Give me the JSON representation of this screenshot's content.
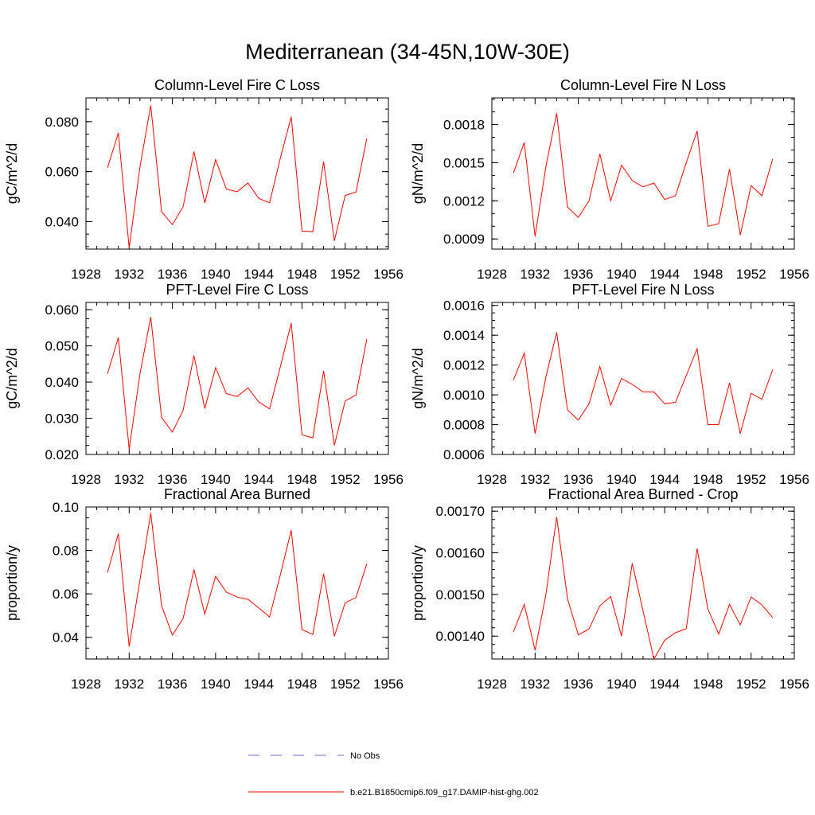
{
  "figure": {
    "title": "Mediterranean (34-45N,10W-30E)"
  },
  "legend": {
    "items": [
      {
        "label": "No Obs",
        "color": "#6a6ad8",
        "dash": "dashed"
      },
      {
        "label": "b.e21.B1850cmip6.f09_g17.DAMIP-hist-ghg.002",
        "color": "#ff0000",
        "dash": "solid"
      }
    ]
  },
  "chart_data": [
    {
      "type": "line",
      "title": "Column-Level Fire C Loss",
      "xlabel": "",
      "ylabel": "gC/m^2/d",
      "xlim": [
        1928,
        1956
      ],
      "ylim": [
        0.029,
        0.0895
      ],
      "xticks": [
        "1928",
        "1932",
        "1936",
        "1940",
        "1944",
        "1948",
        "1952",
        "1956"
      ],
      "yticks": [
        {
          "v": 0.04,
          "label": "0.040"
        },
        {
          "v": 0.06,
          "label": "0.060"
        },
        {
          "v": 0.08,
          "label": "0.080"
        }
      ],
      "yminor": 0.005,
      "x": [
        1930,
        1931,
        1932,
        1933,
        1934,
        1935,
        1936,
        1937,
        1938,
        1939,
        1940,
        1941,
        1942,
        1943,
        1944,
        1945,
        1946,
        1947,
        1948,
        1949,
        1950,
        1951,
        1952,
        1953,
        1954
      ],
      "series": [
        {
          "color": "#ff0000",
          "values": [
            0.0615,
            0.0755,
            0.0295,
            0.062,
            0.0865,
            0.044,
            0.0388,
            0.046,
            0.068,
            0.0475,
            0.0648,
            0.053,
            0.052,
            0.0555,
            0.0493,
            0.0475,
            0.0655,
            0.082,
            0.0362,
            0.036,
            0.064,
            0.0323,
            0.0505,
            0.0518,
            0.0733
          ]
        }
      ]
    },
    {
      "type": "line",
      "title": "Column-Level Fire N Loss",
      "xlabel": "",
      "ylabel": "gN/m^2/d",
      "xlim": [
        1928,
        1956
      ],
      "ylim": [
        0.00082,
        0.00201
      ],
      "xticks": [
        "1928",
        "1932",
        "1936",
        "1940",
        "1944",
        "1948",
        "1952",
        "1956"
      ],
      "yticks": [
        {
          "v": 0.0009,
          "label": "0.0009"
        },
        {
          "v": 0.0012,
          "label": "0.0012"
        },
        {
          "v": 0.0015,
          "label": "0.0015"
        },
        {
          "v": 0.0018,
          "label": "0.0018"
        }
      ],
      "yminor": 0.0001,
      "x": [
        1930,
        1931,
        1932,
        1933,
        1934,
        1935,
        1936,
        1937,
        1938,
        1939,
        1940,
        1941,
        1942,
        1943,
        1944,
        1945,
        1946,
        1947,
        1948,
        1949,
        1950,
        1951,
        1952,
        1953,
        1954
      ],
      "series": [
        {
          "color": "#ff0000",
          "values": [
            0.00142,
            0.00166,
            0.00092,
            0.00147,
            0.00189,
            0.00115,
            0.00107,
            0.0012,
            0.00157,
            0.0012,
            0.00148,
            0.00136,
            0.00131,
            0.00134,
            0.00121,
            0.00124,
            0.0015,
            0.00175,
            0.001,
            0.00102,
            0.00145,
            0.00093,
            0.00132,
            0.00124,
            0.00153
          ]
        }
      ]
    },
    {
      "type": "line",
      "title": "PFT-Level Fire C Loss",
      "xlabel": "",
      "ylabel": "gC/m^2/d",
      "xlim": [
        1928,
        1956
      ],
      "ylim": [
        0.02,
        0.062
      ],
      "xticks": [
        "1928",
        "1932",
        "1936",
        "1940",
        "1944",
        "1948",
        "1952",
        "1956"
      ],
      "yticks": [
        {
          "v": 0.02,
          "label": "0.020"
        },
        {
          "v": 0.03,
          "label": "0.030"
        },
        {
          "v": 0.04,
          "label": "0.040"
        },
        {
          "v": 0.05,
          "label": "0.050"
        },
        {
          "v": 0.06,
          "label": "0.060"
        }
      ],
      "yminor": 0.0025,
      "x": [
        1930,
        1931,
        1932,
        1933,
        1934,
        1935,
        1936,
        1937,
        1938,
        1939,
        1940,
        1941,
        1942,
        1943,
        1944,
        1945,
        1946,
        1947,
        1948,
        1949,
        1950,
        1951,
        1952,
        1953,
        1954
      ],
      "series": [
        {
          "color": "#ff0000",
          "values": [
            0.0423,
            0.0523,
            0.0215,
            0.0423,
            0.058,
            0.0302,
            0.0262,
            0.0322,
            0.0473,
            0.0327,
            0.044,
            0.0368,
            0.036,
            0.0384,
            0.0345,
            0.0326,
            0.0443,
            0.0563,
            0.0254,
            0.0246,
            0.0431,
            0.0225,
            0.0348,
            0.0364,
            0.0519
          ]
        }
      ]
    },
    {
      "type": "line",
      "title": "PFT-Level Fire N Loss",
      "xlabel": "",
      "ylabel": "gN/m^2/d",
      "xlim": [
        1928,
        1956
      ],
      "ylim": [
        0.0006,
        0.00162
      ],
      "xticks": [
        "1928",
        "1932",
        "1936",
        "1940",
        "1944",
        "1948",
        "1952",
        "1956"
      ],
      "yticks": [
        {
          "v": 0.0006,
          "label": "0.0006"
        },
        {
          "v": 0.0008,
          "label": "0.0008"
        },
        {
          "v": 0.001,
          "label": "0.0010"
        },
        {
          "v": 0.0012,
          "label": "0.0012"
        },
        {
          "v": 0.0014,
          "label": "0.0014"
        },
        {
          "v": 0.0016,
          "label": "0.0016"
        }
      ],
      "yminor": 5e-05,
      "x": [
        1930,
        1931,
        1932,
        1933,
        1934,
        1935,
        1936,
        1937,
        1938,
        1939,
        1940,
        1941,
        1942,
        1943,
        1944,
        1945,
        1946,
        1947,
        1948,
        1949,
        1950,
        1951,
        1952,
        1953,
        1954
      ],
      "series": [
        {
          "color": "#ff0000",
          "values": [
            0.0011,
            0.00128,
            0.00074,
            0.00112,
            0.00142,
            0.0009,
            0.00083,
            0.00094,
            0.00119,
            0.00093,
            0.00111,
            0.00107,
            0.00102,
            0.00102,
            0.00094,
            0.00095,
            0.00113,
            0.00131,
            0.0008,
            0.0008,
            0.00108,
            0.00074,
            0.00101,
            0.00097,
            0.00117
          ]
        }
      ]
    },
    {
      "type": "line",
      "title": "Fractional Area Burned",
      "xlabel": "",
      "ylabel": "proportion/y",
      "xlim": [
        1928,
        1956
      ],
      "ylim": [
        0.03,
        0.1
      ],
      "xticks": [
        "1928",
        "1932",
        "1936",
        "1940",
        "1944",
        "1948",
        "1952",
        "1956"
      ],
      "yticks": [
        {
          "v": 0.04,
          "label": "0.04"
        },
        {
          "v": 0.06,
          "label": "0.06"
        },
        {
          "v": 0.08,
          "label": "0.08"
        },
        {
          "v": 0.1,
          "label": "0.10"
        }
      ],
      "yminor": 0.005,
      "x": [
        1930,
        1931,
        1932,
        1933,
        1934,
        1935,
        1936,
        1937,
        1938,
        1939,
        1940,
        1941,
        1942,
        1943,
        1944,
        1945,
        1946,
        1947,
        1948,
        1949,
        1950,
        1951,
        1952,
        1953,
        1954
      ],
      "series": [
        {
          "color": "#ff0000",
          "values": [
            0.0698,
            0.0878,
            0.0357,
            0.0665,
            0.0972,
            0.0545,
            0.041,
            0.0487,
            0.0712,
            0.0507,
            0.068,
            0.0608,
            0.0585,
            0.0575,
            0.0535,
            0.0494,
            0.0689,
            0.0893,
            0.0436,
            0.0413,
            0.0693,
            0.0405,
            0.0559,
            0.0583,
            0.0739
          ]
        }
      ]
    },
    {
      "type": "line",
      "title": "Fractional Area Burned - Crop",
      "xlabel": "",
      "ylabel": "proportion/y",
      "xlim": [
        1928,
        1956
      ],
      "ylim": [
        0.001345,
        0.00171
      ],
      "xticks": [
        "1928",
        "1932",
        "1936",
        "1940",
        "1944",
        "1948",
        "1952",
        "1956"
      ],
      "yticks": [
        {
          "v": 0.0014,
          "label": "0.00140"
        },
        {
          "v": 0.0015,
          "label": "0.00150"
        },
        {
          "v": 0.0016,
          "label": "0.00160"
        },
        {
          "v": 0.0017,
          "label": "0.00170"
        }
      ],
      "yminor": 2e-05,
      "x": [
        1930,
        1931,
        1932,
        1933,
        1934,
        1935,
        1936,
        1937,
        1938,
        1939,
        1940,
        1941,
        1942,
        1943,
        1944,
        1945,
        1946,
        1947,
        1948,
        1949,
        1950,
        1951,
        1952,
        1953,
        1954
      ],
      "series": [
        {
          "color": "#ff0000",
          "values": [
            0.00141,
            0.001476,
            0.001366,
            0.0015,
            0.001686,
            0.00149,
            0.001403,
            0.001417,
            0.001473,
            0.001495,
            0.0014,
            0.001575,
            0.00146,
            0.001345,
            0.00139,
            0.001408,
            0.001418,
            0.00161,
            0.001465,
            0.001405,
            0.001476,
            0.001427,
            0.001494,
            0.001475,
            0.001444
          ]
        }
      ]
    }
  ]
}
